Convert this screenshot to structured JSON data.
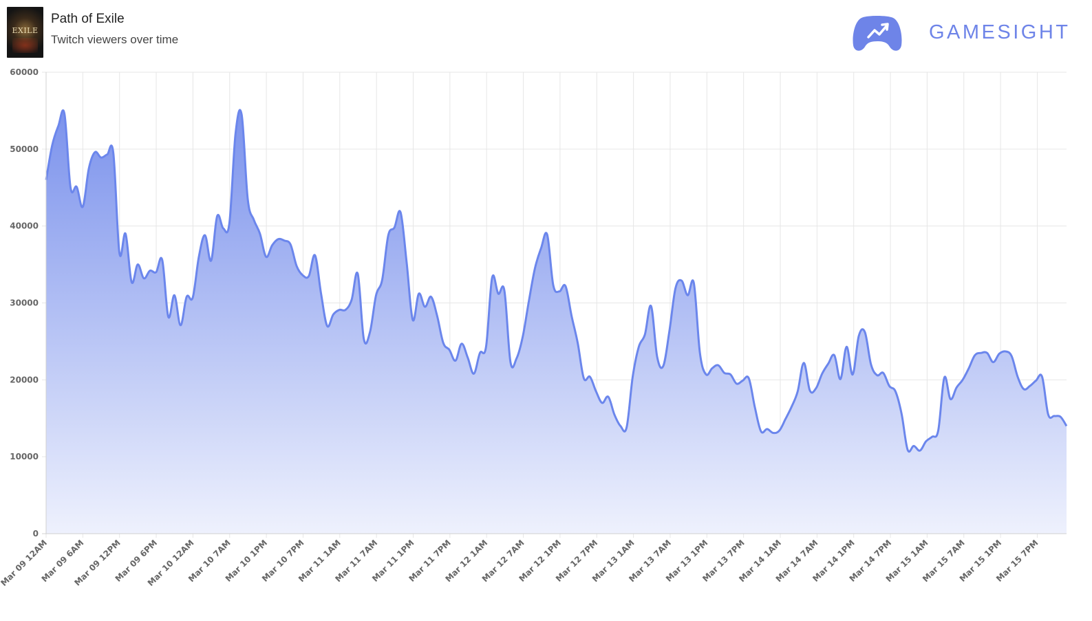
{
  "header": {
    "game_title": "Path of Exile",
    "subtitle": "Twitch viewers over time",
    "thumbnail_icon": "path-of-exile-cover-art",
    "thumbnail_text": "EXILE",
    "brand_icon": "gamepad-trend-icon",
    "brand_name": "GAMESIGHT"
  },
  "colors": {
    "line": "#6b86ec",
    "fill_top": "#7b92ec",
    "fill_bottom": "#eef1fd",
    "brand": "#6e84e8",
    "grid": "#e6e6e6"
  },
  "chart_data": {
    "type": "area",
    "title": "",
    "xlabel": "",
    "ylabel": "",
    "ylim": [
      0,
      60000
    ],
    "yticks": [
      "0",
      "10000",
      "20000",
      "30000",
      "40000",
      "50000",
      "60000"
    ],
    "grid": true,
    "legend": "none",
    "x_tick_labels": [
      "Mar 09 12AM",
      "Mar 09 6AM",
      "Mar 09 12PM",
      "Mar 09 6PM",
      "Mar 10 12AM",
      "Mar 10 7AM",
      "Mar 10 1PM",
      "Mar 10 7PM",
      "Mar 11 1AM",
      "Mar 11 7AM",
      "Mar 11 1PM",
      "Mar 11 7PM",
      "Mar 12 1AM",
      "Mar 12 7AM",
      "Mar 12 1PM",
      "Mar 12 7PM",
      "Mar 13 1AM",
      "Mar 13 7AM",
      "Mar 13 1PM",
      "Mar 13 7PM",
      "Mar 14 1AM",
      "Mar 14 7AM",
      "Mar 14 1PM",
      "Mar 14 7PM",
      "Mar 15 1AM",
      "Mar 15 7AM",
      "Mar 15 1PM",
      "Mar 15 7PM"
    ],
    "series": [
      {
        "values": [
          46000,
          50500,
          53000,
          54600,
          45000,
          45100,
          42500,
          47500,
          49600,
          48900,
          49300,
          49500,
          36500,
          39000,
          32700,
          35000,
          33200,
          34200,
          34000,
          35600,
          28200,
          31000,
          27100,
          30800,
          30700,
          36000,
          38800,
          35500,
          41300,
          39700,
          40400,
          52000,
          54500,
          43500,
          40800,
          39000,
          36000,
          37500,
          38300,
          38100,
          37600,
          34800,
          33600,
          33500,
          36200,
          31200,
          27000,
          28500,
          29100,
          29100,
          30400,
          33800,
          25300,
          26200,
          31000,
          33000,
          38800,
          39800,
          41800,
          35300,
          27800,
          31200,
          29500,
          30800,
          28300,
          24800,
          23900,
          22500,
          24700,
          22900,
          20800,
          23500,
          24300,
          33300,
          31200,
          31600,
          22300,
          22800,
          25600,
          30200,
          34500,
          37100,
          38900,
          32300,
          31500,
          32200,
          28300,
          24800,
          20200,
          20400,
          18500,
          17000,
          17800,
          15500,
          14000,
          13800,
          20400,
          24300,
          25900,
          29600,
          23000,
          21800,
          26300,
          31900,
          32900,
          31000,
          32600,
          23500,
          20700,
          21500,
          21900,
          20900,
          20700,
          19500,
          19900,
          20200,
          16400,
          13300,
          13600,
          13100,
          13400,
          14900,
          16500,
          18500,
          22200,
          18600,
          18900,
          20800,
          22100,
          23200,
          20100,
          24300,
          20700,
          25700,
          26200,
          22000,
          20600,
          20900,
          19200,
          18500,
          15600,
          10900,
          11400,
          10800,
          12000,
          12600,
          13400,
          20300,
          17500,
          19000,
          20000,
          21500,
          23200,
          23500,
          23500,
          22300,
          23400,
          23700,
          23100,
          20400,
          18800,
          19200,
          19900,
          20400,
          15500,
          15300,
          15200,
          14000
        ]
      }
    ]
  }
}
